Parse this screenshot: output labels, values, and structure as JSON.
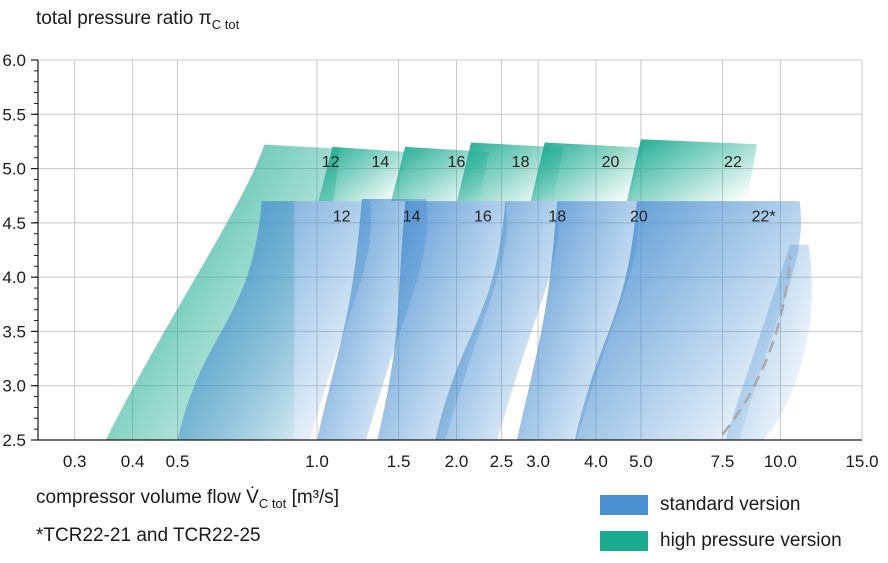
{
  "chart_data": {
    "type": "area",
    "title": "",
    "ylabel": {
      "main": "total pressure ratio",
      "symbol": "π",
      "sub": "C tot"
    },
    "xlabel": {
      "main": "compressor volume flow",
      "symbol": "V̇",
      "sub": "C tot",
      "unit": "[m³/s]"
    },
    "xscale": "log",
    "xlim": [
      0.25,
      15.0
    ],
    "ylim": [
      2.5,
      6.0
    ],
    "grid": true,
    "x_ticks": [
      0.3,
      0.4,
      0.5,
      1.0,
      1.5,
      2.0,
      2.5,
      3.0,
      4.0,
      5.0,
      7.5,
      10.0,
      15.0
    ],
    "x_tick_labels": [
      "0.3",
      "0.4",
      "0.5",
      "1.0",
      "1.5",
      "2.0",
      "2.5",
      "3.0",
      "4.0",
      "5.0",
      "7.5",
      "10.0",
      "15.0"
    ],
    "y_ticks": [
      2.5,
      3.0,
      3.5,
      4.0,
      4.5,
      5.0,
      5.5,
      6.0
    ],
    "y_tick_labels": [
      "2.5",
      "3.0",
      "3.5",
      "4.0",
      "4.5",
      "5.0",
      "5.5",
      "6.0"
    ],
    "legend": {
      "position": "bottom-right",
      "entries": [
        {
          "label": "standard version",
          "color": "#4a8fd0"
        },
        {
          "label": "high pressure version",
          "color": "#1aaa8f"
        }
      ]
    },
    "footnote": "*TCR22-21 and TCR22-25",
    "series": [
      {
        "name": "standard version",
        "color": "#4a8fd0",
        "maps": [
          {
            "label": "12",
            "x_left_bottom": 0.5,
            "x_left_top": 0.76,
            "x_right": 1.3,
            "p_max": 4.7
          },
          {
            "label": "14",
            "x_left_bottom": 1.0,
            "x_left_top": 1.25,
            "x_right": 1.72,
            "p_max": 4.72
          },
          {
            "label": "16",
            "x_left_bottom": 1.35,
            "x_left_top": 1.55,
            "x_right": 2.55,
            "p_max": 4.7
          },
          {
            "label": "18",
            "x_left_bottom": 1.8,
            "x_left_top": 2.55,
            "x_right": 3.3,
            "p_max": 4.7
          },
          {
            "label": "20",
            "x_left_bottom": 2.7,
            "x_left_top": 3.3,
            "x_right": 4.9,
            "p_max": 4.7
          },
          {
            "label": "22*",
            "x_left_bottom": 3.6,
            "x_left_top": 4.9,
            "x_right": 11.0,
            "p_max": 4.7
          }
        ]
      },
      {
        "name": "high pressure version",
        "color": "#1aaa8f",
        "maps": [
          {
            "label": "12",
            "x_left_bottom": 0.35,
            "x_left_top": 0.77,
            "x_right": 1.12,
            "p_max": 5.22
          },
          {
            "label": "14",
            "x_left_bottom": null,
            "x_left_top": 1.08,
            "x_right": 1.55,
            "p_max": 5.2
          },
          {
            "label": "16",
            "x_left_bottom": null,
            "x_left_top": 1.55,
            "x_right": 2.35,
            "p_max": 5.2
          },
          {
            "label": "18",
            "x_left_bottom": null,
            "x_left_top": 2.15,
            "x_right": 3.4,
            "p_max": 5.24
          },
          {
            "label": "20",
            "x_left_bottom": null,
            "x_left_top": 3.1,
            "x_right": 5.0,
            "p_max": 5.24
          },
          {
            "label": "22",
            "x_left_bottom": null,
            "x_left_top": 5.0,
            "x_right": 8.9,
            "p_max": 5.27
          }
        ]
      }
    ],
    "dashed_limit_22": {
      "x": [
        7.5,
        10.5
      ],
      "y": [
        2.55,
        4.2
      ]
    }
  }
}
